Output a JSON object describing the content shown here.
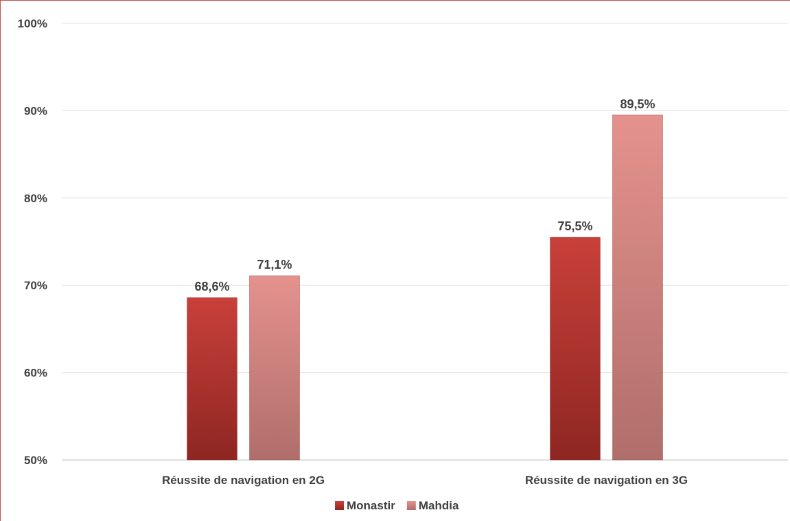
{
  "chart_data": {
    "type": "bar",
    "categories": [
      "Réussite de navigation en 2G",
      "Réussite de navigation en 3G"
    ],
    "series": [
      {
        "name": "Monastir",
        "values": [
          68.6,
          75.5
        ],
        "labels": [
          "68,6%",
          "75,5%"
        ],
        "color_top": "#c9403a",
        "color_bottom": "#8e2622"
      },
      {
        "name": "Mahdia",
        "values": [
          71.1,
          89.5
        ],
        "labels": [
          "71,1%",
          "89,5%"
        ],
        "color_top": "#e5928e",
        "color_bottom": "#b06e6a"
      }
    ],
    "y_ticks": [
      {
        "value": 50,
        "label": "50%"
      },
      {
        "value": 60,
        "label": "60%"
      },
      {
        "value": 70,
        "label": "70%"
      },
      {
        "value": 80,
        "label": "80%"
      },
      {
        "value": 90,
        "label": "90%"
      },
      {
        "value": 100,
        "label": "100%"
      }
    ],
    "ylim": [
      50,
      100
    ],
    "grid": true,
    "legend_position": "bottom",
    "title": "",
    "xlabel": "",
    "ylabel": ""
  }
}
